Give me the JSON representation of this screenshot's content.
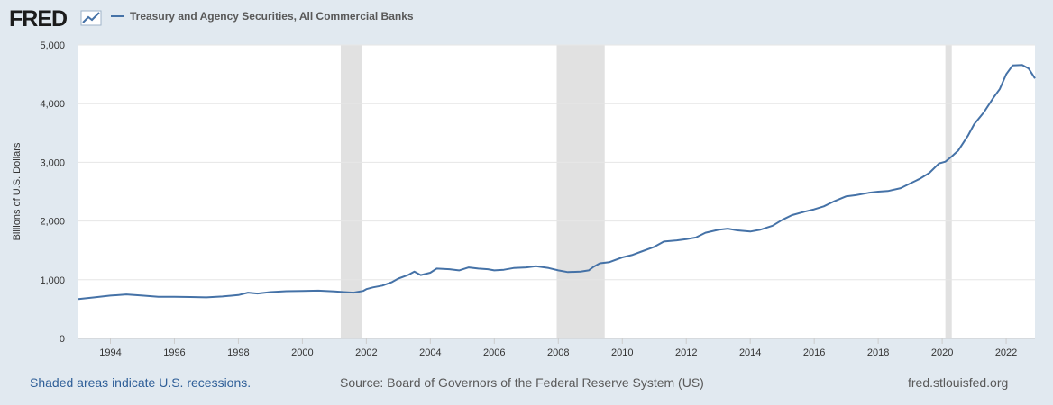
{
  "header": {
    "logo_text": "FRED",
    "logo_icon": "chart-line-icon",
    "series_title": "Treasury and Agency Securities, All Commercial Banks"
  },
  "footer": {
    "recession_note": "Shaded areas indicate U.S. recessions.",
    "source": "Source: Board of Governors of the Federal Reserve System (US)",
    "site": "fred.stlouisfed.org"
  },
  "colors": {
    "background": "#e1e9f0",
    "plot_background": "#ffffff",
    "line": "#4572a7",
    "recession": "#e1e1e1",
    "footer_link": "#2f5f98"
  },
  "chart_data": {
    "type": "line",
    "title": "",
    "xlabel": "",
    "ylabel": "Billions of U.S. Dollars",
    "xlim": [
      1993.0,
      2022.9
    ],
    "ylim": [
      0,
      5000
    ],
    "grid": true,
    "y_ticks": [
      0,
      1000,
      2000,
      3000,
      4000,
      5000
    ],
    "y_tick_labels": [
      "0",
      "1,000",
      "2,000",
      "3,000",
      "4,000",
      "5,000"
    ],
    "x_ticks": [
      1994,
      1996,
      1998,
      2000,
      2002,
      2004,
      2006,
      2008,
      2010,
      2012,
      2014,
      2016,
      2018,
      2020,
      2022
    ],
    "x_tick_labels": [
      "1994",
      "1996",
      "1998",
      "2000",
      "2002",
      "2004",
      "2006",
      "2008",
      "2010",
      "2012",
      "2014",
      "2016",
      "2018",
      "2020",
      "2022"
    ],
    "recessions": [
      [
        2001.2,
        2001.85
      ],
      [
        2007.95,
        2009.45
      ],
      [
        2020.1,
        2020.3
      ]
    ],
    "series": [
      {
        "values": [
          [
            1993.0,
            670
          ],
          [
            1993.5,
            700
          ],
          [
            1994.0,
            730
          ],
          [
            1994.5,
            750
          ],
          [
            1995.0,
            730
          ],
          [
            1995.5,
            710
          ],
          [
            1996.0,
            710
          ],
          [
            1996.5,
            705
          ],
          [
            1997.0,
            700
          ],
          [
            1997.5,
            715
          ],
          [
            1998.0,
            740
          ],
          [
            1998.3,
            780
          ],
          [
            1998.6,
            765
          ],
          [
            1999.0,
            790
          ],
          [
            1999.5,
            805
          ],
          [
            2000.0,
            810
          ],
          [
            2000.5,
            815
          ],
          [
            2001.0,
            800
          ],
          [
            2001.3,
            790
          ],
          [
            2001.6,
            780
          ],
          [
            2001.9,
            810
          ],
          [
            2002.0,
            840
          ],
          [
            2002.2,
            870
          ],
          [
            2002.5,
            900
          ],
          [
            2002.8,
            960
          ],
          [
            2003.0,
            1020
          ],
          [
            2003.3,
            1080
          ],
          [
            2003.5,
            1140
          ],
          [
            2003.7,
            1080
          ],
          [
            2004.0,
            1120
          ],
          [
            2004.2,
            1190
          ],
          [
            2004.6,
            1180
          ],
          [
            2004.9,
            1160
          ],
          [
            2005.2,
            1210
          ],
          [
            2005.5,
            1190
          ],
          [
            2005.8,
            1180
          ],
          [
            2006.0,
            1160
          ],
          [
            2006.3,
            1170
          ],
          [
            2006.6,
            1200
          ],
          [
            2007.0,
            1210
          ],
          [
            2007.3,
            1230
          ],
          [
            2007.7,
            1200
          ],
          [
            2008.0,
            1160
          ],
          [
            2008.3,
            1130
          ],
          [
            2008.7,
            1140
          ],
          [
            2008.95,
            1160
          ],
          [
            2009.1,
            1220
          ],
          [
            2009.3,
            1280
          ],
          [
            2009.6,
            1300
          ],
          [
            2010.0,
            1380
          ],
          [
            2010.3,
            1420
          ],
          [
            2010.6,
            1480
          ],
          [
            2011.0,
            1560
          ],
          [
            2011.3,
            1650
          ],
          [
            2011.7,
            1670
          ],
          [
            2012.0,
            1690
          ],
          [
            2012.3,
            1720
          ],
          [
            2012.6,
            1800
          ],
          [
            2013.0,
            1850
          ],
          [
            2013.3,
            1870
          ],
          [
            2013.6,
            1840
          ],
          [
            2014.0,
            1820
          ],
          [
            2014.3,
            1850
          ],
          [
            2014.7,
            1920
          ],
          [
            2015.0,
            2020
          ],
          [
            2015.3,
            2100
          ],
          [
            2015.7,
            2160
          ],
          [
            2016.0,
            2200
          ],
          [
            2016.3,
            2250
          ],
          [
            2016.6,
            2330
          ],
          [
            2017.0,
            2420
          ],
          [
            2017.3,
            2440
          ],
          [
            2017.7,
            2480
          ],
          [
            2018.0,
            2500
          ],
          [
            2018.3,
            2510
          ],
          [
            2018.7,
            2560
          ],
          [
            2019.0,
            2640
          ],
          [
            2019.3,
            2720
          ],
          [
            2019.6,
            2820
          ],
          [
            2019.9,
            2980
          ],
          [
            2020.1,
            3010
          ],
          [
            2020.3,
            3100
          ],
          [
            2020.5,
            3200
          ],
          [
            2020.8,
            3450
          ],
          [
            2021.0,
            3650
          ],
          [
            2021.3,
            3850
          ],
          [
            2021.6,
            4100
          ],
          [
            2021.8,
            4250
          ],
          [
            2022.0,
            4500
          ],
          [
            2022.2,
            4650
          ],
          [
            2022.5,
            4660
          ],
          [
            2022.7,
            4600
          ],
          [
            2022.9,
            4430
          ]
        ]
      }
    ]
  }
}
